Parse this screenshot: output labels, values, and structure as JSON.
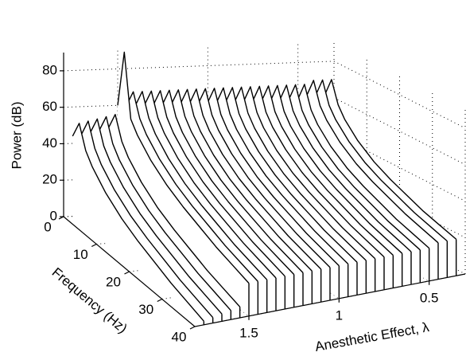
{
  "chart_data": {
    "type": "waterfall",
    "xlabel": "Frequency (Hz)",
    "ylabel": "Anesthetic Effect, λ",
    "zlabel": "Power (dB)",
    "x": [
      0,
      2,
      4,
      6,
      10,
      15,
      20,
      25,
      30,
      35,
      40
    ],
    "xlim": [
      0,
      40
    ],
    "xticks": [
      0,
      10,
      20,
      30,
      40
    ],
    "ylim": [
      1.8,
      0.3
    ],
    "yticks": [
      1.5,
      1,
      0.5
    ],
    "zlim": [
      0,
      90
    ],
    "zticks": [
      0,
      20,
      40,
      60,
      80
    ],
    "grid": true,
    "color": "#000000",
    "series": [
      {
        "y": 1.75,
        "values": [
          44,
          54,
          42,
          36,
          28,
          21,
          16,
          12,
          8,
          5,
          2
        ]
      },
      {
        "y": 1.7,
        "values": [
          45,
          55,
          43,
          37,
          29,
          22,
          17,
          13,
          9,
          6,
          3
        ]
      },
      {
        "y": 1.65,
        "values": [
          46,
          56,
          44,
          38,
          30,
          23,
          18,
          14,
          10,
          7,
          4
        ]
      },
      {
        "y": 1.6,
        "values": [
          47,
          57,
          45,
          39,
          31,
          24,
          19,
          15,
          11,
          8,
          5
        ]
      },
      {
        "y": 1.55,
        "values": [
          48,
          58,
          46,
          40,
          32,
          25,
          20,
          16,
          12,
          9,
          6
        ]
      },
      {
        "y": 1.5,
        "values": [
          60,
          92,
          58,
          52,
          44,
          37,
          32,
          28,
          24,
          21,
          18
        ]
      },
      {
        "y": 1.45,
        "values": [
          60,
          70,
          58,
          52,
          44,
          37,
          32,
          28,
          24,
          21,
          18
        ]
      },
      {
        "y": 1.4,
        "values": [
          60,
          70,
          58,
          52,
          44,
          37,
          32,
          28,
          24,
          21,
          18
        ]
      },
      {
        "y": 1.35,
        "values": [
          60,
          70,
          58,
          52,
          44,
          37,
          32,
          28,
          24,
          21,
          18
        ]
      },
      {
        "y": 1.3,
        "values": [
          60,
          70,
          58,
          52,
          44,
          37,
          32,
          28,
          24,
          21,
          18
        ]
      },
      {
        "y": 1.25,
        "values": [
          60,
          70,
          58,
          52,
          44,
          37,
          32,
          28,
          24,
          21,
          18
        ]
      },
      {
        "y": 1.2,
        "values": [
          60,
          70,
          58,
          52,
          44,
          37,
          32,
          28,
          24,
          21,
          18
        ]
      },
      {
        "y": 1.15,
        "values": [
          60,
          70,
          58,
          52,
          44,
          37,
          32,
          28,
          24,
          21,
          18
        ]
      },
      {
        "y": 1.1,
        "values": [
          60,
          70,
          58,
          52,
          44,
          37,
          32,
          28,
          24,
          21,
          18
        ]
      },
      {
        "y": 1.05,
        "values": [
          60,
          70,
          58,
          52,
          44,
          37,
          32,
          28,
          24,
          21,
          18
        ]
      },
      {
        "y": 1.0,
        "values": [
          60,
          70,
          58,
          52,
          44,
          37,
          32,
          28,
          24,
          21,
          18
        ]
      },
      {
        "y": 0.95,
        "values": [
          60,
          70,
          58,
          52,
          44,
          37,
          32,
          28,
          24,
          21,
          18
        ]
      },
      {
        "y": 0.9,
        "values": [
          60,
          70,
          58,
          52,
          44,
          37,
          32,
          28,
          24,
          21,
          18
        ]
      },
      {
        "y": 0.85,
        "values": [
          60,
          70,
          58,
          52,
          44,
          37,
          32,
          28,
          24,
          21,
          18
        ]
      },
      {
        "y": 0.8,
        "values": [
          60,
          70,
          58,
          52,
          44,
          37,
          32,
          28,
          24,
          21,
          18
        ]
      },
      {
        "y": 0.75,
        "values": [
          60,
          70,
          58,
          52,
          44,
          37,
          32,
          28,
          24,
          21,
          18
        ]
      },
      {
        "y": 0.7,
        "values": [
          60,
          70,
          58,
          52,
          44,
          37,
          32,
          28,
          24,
          21,
          18
        ]
      },
      {
        "y": 0.65,
        "values": [
          60,
          70,
          58,
          52,
          44,
          37,
          32,
          28,
          24,
          21,
          18
        ]
      },
      {
        "y": 0.6,
        "values": [
          60,
          70,
          58,
          52,
          44,
          37,
          32,
          28,
          24,
          21,
          18
        ]
      },
      {
        "y": 0.55,
        "values": [
          60,
          70,
          58,
          52,
          44,
          37,
          32,
          28,
          24,
          21,
          18
        ]
      },
      {
        "y": 0.5,
        "values": [
          60,
          70,
          58,
          52,
          44,
          37,
          32,
          28,
          24,
          21,
          18
        ]
      },
      {
        "y": 0.45,
        "values": [
          62,
          72,
          60,
          54,
          46,
          39,
          34,
          30,
          26,
          23,
          20
        ]
      },
      {
        "y": 0.4,
        "values": [
          62,
          72,
          60,
          54,
          46,
          39,
          34,
          30,
          26,
          23,
          20
        ]
      },
      {
        "y": 0.35,
        "values": [
          62,
          72,
          60,
          54,
          46,
          39,
          34,
          30,
          26,
          23,
          20
        ]
      }
    ]
  }
}
